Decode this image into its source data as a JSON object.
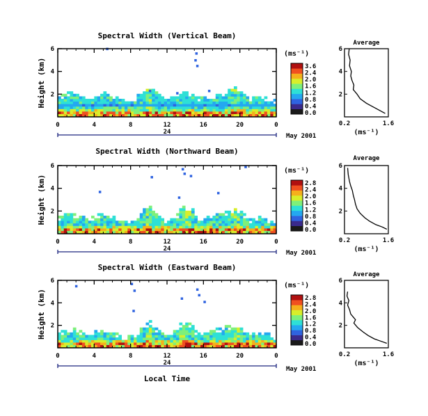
{
  "colors": {
    "colormap": [
      "#1a1a1a",
      "#3a2a8c",
      "#2f63e0",
      "#24a8f0",
      "#2ee0d6",
      "#7ef07a",
      "#d8ee2a",
      "#f5b01c",
      "#f05020",
      "#b01010"
    ],
    "frame": "#000000",
    "timebar": "#1a237e"
  },
  "shared": {
    "ylabel": "Height (km)",
    "xlabel": "Local Time",
    "x_ticks": [
      "0",
      "4",
      "8",
      "12",
      "16",
      "20",
      "0"
    ],
    "day_label": "24",
    "date_label": "May 2001",
    "unit_label": "(ms⁻¹)",
    "y_ticks": [
      "2",
      "4",
      "6"
    ],
    "avg_title": "Average",
    "avg_xticks": [
      "0.2",
      "1.6"
    ],
    "avg_xlabel": "(ms⁻¹)"
  },
  "chart_data": [
    {
      "type": "heatmap",
      "title": "Spectral Width (Vertical Beam)",
      "xlim": [
        0,
        24
      ],
      "ylim": [
        0,
        6
      ],
      "colorbar_ticks": [
        "3.6",
        "2.4",
        "2.0",
        "1.6",
        "1.2",
        "0.8",
        "0.4",
        "0.0"
      ],
      "color_range": [
        0,
        3.6
      ],
      "profile": {
        "type": "line",
        "xlim": [
          0.2,
          1.6
        ],
        "ylim": [
          0,
          6
        ],
        "x": [
          0.35,
          0.33,
          0.38,
          0.36,
          0.42,
          0.4,
          0.44,
          0.5,
          0.48,
          0.6,
          0.7,
          0.9,
          1.1,
          1.3,
          1.5
        ],
        "y": [
          6.0,
          5.5,
          5.0,
          4.5,
          4.0,
          3.6,
          3.2,
          2.8,
          2.4,
          2.0,
          1.6,
          1.2,
          0.9,
          0.6,
          0.3
        ]
      }
    },
    {
      "type": "heatmap",
      "title": "Spectral Width (Northward Beam)",
      "xlim": [
        0,
        24
      ],
      "ylim": [
        0,
        6
      ],
      "colorbar_ticks": [
        "2.8",
        "2.4",
        "2.0",
        "1.6",
        "1.2",
        "0.8",
        "0.4",
        "0.0"
      ],
      "color_range": [
        0,
        2.8
      ],
      "profile": {
        "type": "line",
        "xlim": [
          0.2,
          1.6
        ],
        "ylim": [
          0,
          6
        ],
        "x": [
          0.3,
          0.32,
          0.36,
          0.4,
          0.45,
          0.48,
          0.52,
          0.55,
          0.6,
          0.7,
          0.85,
          1.0,
          1.2,
          1.4,
          1.55
        ],
        "y": [
          5.8,
          5.2,
          4.6,
          4.2,
          3.8,
          3.4,
          3.0,
          2.6,
          2.2,
          1.8,
          1.4,
          1.1,
          0.8,
          0.6,
          0.4
        ]
      }
    },
    {
      "type": "heatmap",
      "title": "Spectral Width (Eastward Beam)",
      "xlim": [
        0,
        24
      ],
      "ylim": [
        0,
        6
      ],
      "colorbar_ticks": [
        "2.8",
        "2.4",
        "2.0",
        "1.6",
        "1.2",
        "0.8",
        "0.4",
        "0.0"
      ],
      "color_range": [
        0,
        2.8
      ],
      "profile": {
        "type": "line",
        "xlim": [
          0.2,
          1.6
        ],
        "ylim": [
          0,
          6
        ],
        "x": [
          0.3,
          0.28,
          0.34,
          0.3,
          0.36,
          0.4,
          0.46,
          0.55,
          0.5,
          0.62,
          0.8,
          0.95,
          1.15,
          1.35,
          1.55
        ],
        "y": [
          5.0,
          4.6,
          4.2,
          3.8,
          3.4,
          3.0,
          2.8,
          2.5,
          2.2,
          1.8,
          1.4,
          1.1,
          0.8,
          0.6,
          0.4
        ]
      }
    }
  ]
}
